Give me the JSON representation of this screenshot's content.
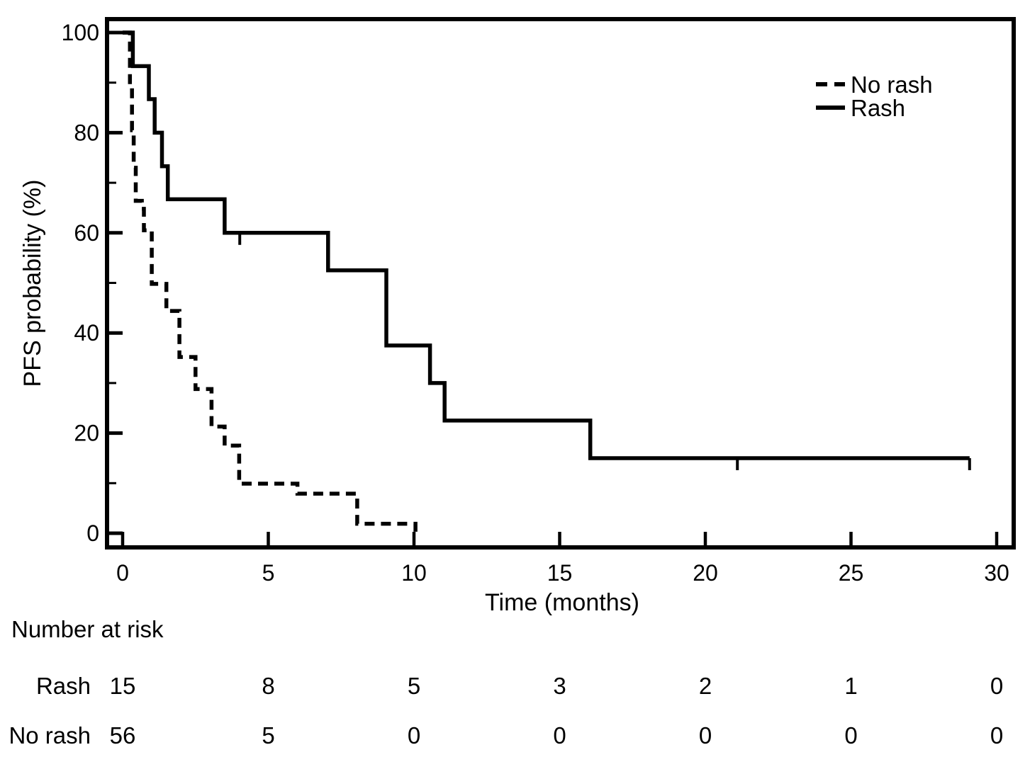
{
  "chart_data": {
    "type": "line",
    "subtype": "kaplan-meier-step-curves",
    "title": "",
    "xlabel": "Time (months)",
    "ylabel": "PFS probability (%)",
    "xlim": [
      0,
      30
    ],
    "ylim": [
      0,
      100
    ],
    "x_ticks": [
      0,
      5,
      10,
      15,
      20,
      25,
      30
    ],
    "y_ticks_major": [
      0,
      20,
      40,
      60,
      80,
      100
    ],
    "y_ticks_minor": [
      10,
      30,
      50,
      70,
      90
    ],
    "grid": false,
    "legend_position": "top-right-inside",
    "line_color": "#000000",
    "background_color": "#ffffff",
    "series": [
      {
        "name": "No rash",
        "style": "dashed",
        "steps": [
          [
            0,
            100
          ],
          [
            0.25,
            100
          ],
          [
            0.25,
            89
          ],
          [
            0.32,
            89
          ],
          [
            0.32,
            80.5
          ],
          [
            0.38,
            80.5
          ],
          [
            0.38,
            73
          ],
          [
            0.45,
            73
          ],
          [
            0.45,
            66.4
          ],
          [
            0.66,
            66.4
          ],
          [
            0.66,
            64.8
          ],
          [
            0.73,
            64.8
          ],
          [
            0.73,
            60.5
          ],
          [
            1.0,
            60.5
          ],
          [
            1.0,
            49.8
          ],
          [
            1.5,
            49.8
          ],
          [
            1.5,
            44.4
          ],
          [
            1.95,
            44.4
          ],
          [
            1.95,
            35.2
          ],
          [
            2.5,
            35.2
          ],
          [
            2.5,
            28.8
          ],
          [
            3.05,
            28.8
          ],
          [
            3.05,
            21.3
          ],
          [
            3.5,
            21.3
          ],
          [
            3.5,
            17.5
          ],
          [
            4.0,
            17.5
          ],
          [
            4.0,
            9.9
          ],
          [
            6.0,
            9.9
          ],
          [
            6.0,
            7.9
          ],
          [
            8.05,
            7.9
          ],
          [
            8.05,
            1.9
          ],
          [
            10.05,
            1.9
          ],
          [
            10.05,
            0
          ]
        ],
        "censor_marks": []
      },
      {
        "name": "Rash",
        "style": "solid",
        "steps": [
          [
            0,
            100
          ],
          [
            0.35,
            100
          ],
          [
            0.35,
            93.3
          ],
          [
            0.9,
            93.3
          ],
          [
            0.9,
            86.7
          ],
          [
            1.1,
            86.7
          ],
          [
            1.1,
            80
          ],
          [
            1.35,
            80
          ],
          [
            1.35,
            73.3
          ],
          [
            1.55,
            73.3
          ],
          [
            1.55,
            66.7
          ],
          [
            3.5,
            66.7
          ],
          [
            3.5,
            60
          ],
          [
            7.05,
            60
          ],
          [
            7.05,
            52.5
          ],
          [
            9.05,
            52.5
          ],
          [
            9.05,
            37.5
          ],
          [
            10.55,
            37.5
          ],
          [
            10.55,
            30
          ],
          [
            11.05,
            30
          ],
          [
            11.05,
            22.5
          ],
          [
            16.05,
            22.5
          ],
          [
            16.05,
            15
          ],
          [
            29.07,
            15
          ]
        ],
        "censor_marks": [
          [
            4.02,
            60
          ],
          [
            21.1,
            15
          ],
          [
            29.07,
            15
          ]
        ]
      }
    ]
  },
  "legend": {
    "items": [
      {
        "label": "No rash",
        "style": "dashed"
      },
      {
        "label": "Rash",
        "style": "solid"
      }
    ]
  },
  "risk_table": {
    "title": "Number at risk",
    "time_points": [
      0,
      5,
      10,
      15,
      20,
      25,
      30
    ],
    "rows": [
      {
        "label": "Rash",
        "values": [
          "15",
          "8",
          "5",
          "3",
          "2",
          "1",
          "0"
        ]
      },
      {
        "label": "No rash",
        "values": [
          "56",
          "5",
          "0",
          "0",
          "0",
          "0",
          "0"
        ]
      }
    ]
  }
}
